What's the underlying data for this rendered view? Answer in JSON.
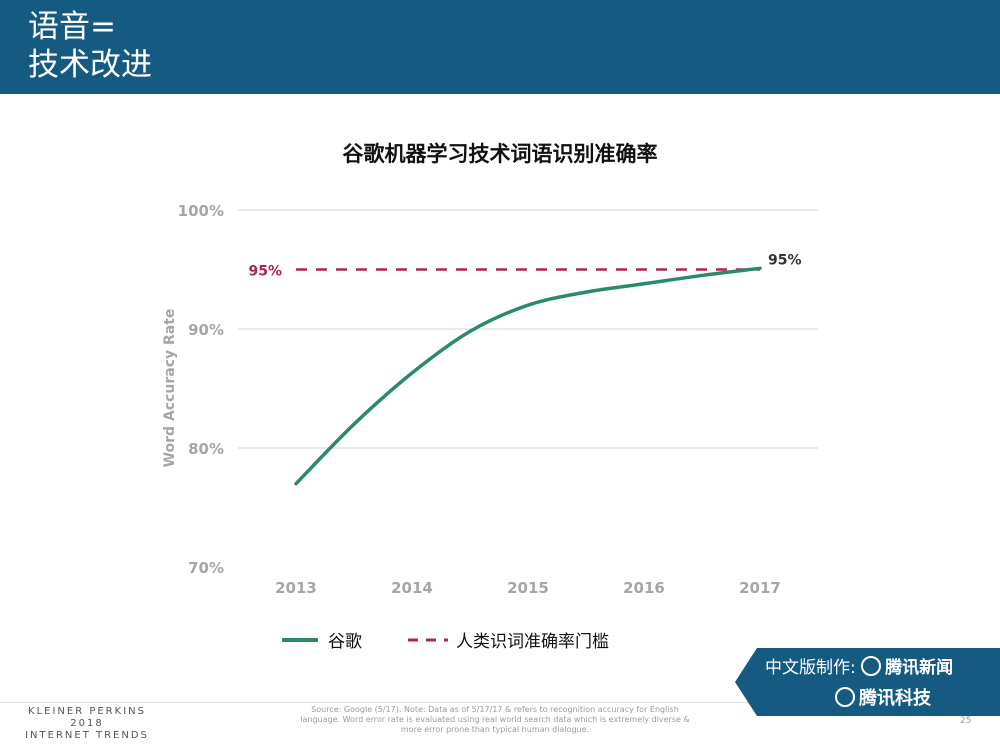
{
  "header": {
    "title_line1": "语音=",
    "title_line2": "技术改进"
  },
  "colors": {
    "header_bg": "#155b81",
    "google_line": "#2b8a6a",
    "human_line": "#b0215a",
    "grid": "#d6d6d6",
    "tick_text": "#a6a6a6"
  },
  "chart_data": {
    "type": "line",
    "title": "谷歌机器学习技术词语识别准确率",
    "ylabel": "Word Accuracy Rate",
    "xlabel": "",
    "x": [
      2013,
      2014,
      2015,
      2016,
      2017
    ],
    "x_tick_labels": [
      "2013",
      "2014",
      "2015",
      "2016",
      "2017"
    ],
    "y_ticks": [
      70,
      80,
      90,
      100
    ],
    "y_tick_labels": [
      "70%",
      "80%",
      "90%",
      "100%"
    ],
    "ylim": [
      70,
      100
    ],
    "grid": true,
    "series": [
      {
        "name": "谷歌",
        "style": "solid",
        "color": "#2b8a6a",
        "points": [
          [
            2013,
            77.0
          ],
          [
            2013.5,
            82.0
          ],
          [
            2014,
            86.3
          ],
          [
            2014.5,
            89.8
          ],
          [
            2015,
            92.0
          ],
          [
            2015.5,
            93.1
          ],
          [
            2016,
            93.8
          ],
          [
            2016.5,
            94.5
          ],
          [
            2017,
            95.1
          ]
        ],
        "end_label": "95%"
      },
      {
        "name": "人类识词准确率门槛",
        "style": "dashed",
        "color": "#b0215a",
        "points": [
          [
            2013,
            95
          ],
          [
            2017,
            95
          ]
        ],
        "start_label": "95%"
      }
    ],
    "legend_position": "bottom"
  },
  "badge": {
    "line1": "中文版制作:",
    "line1_brand": "腾讯新闻",
    "line2_brand": "腾讯科技"
  },
  "footer": {
    "logo_line1": "KLEINER PERKINS",
    "logo_line2": "2018",
    "logo_line3": "INTERNET TRENDS",
    "source": "Source: Google (5/17).  Note: Data as of 5/17/17 & refers to recognition accuracy for English language. Word error rate is evaluated using real world search data which is extremely diverse & more error prone than typical human dialogue.",
    "page_number": "25"
  }
}
